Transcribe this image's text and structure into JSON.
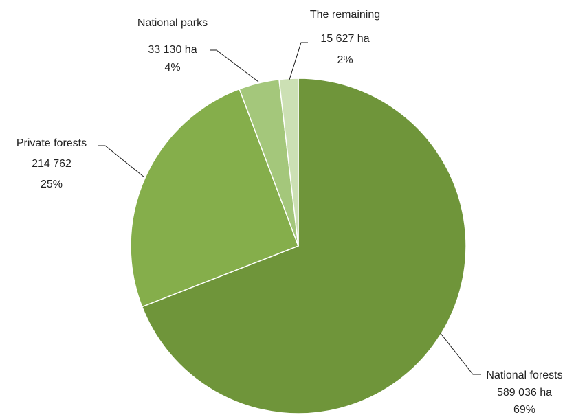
{
  "chart_data": {
    "type": "pie",
    "title": "",
    "slices": [
      {
        "name": "National forests",
        "value": 589036,
        "value_label": "589 036 ha",
        "percent_label": "69%",
        "color": "#6f953a"
      },
      {
        "name": "Private forests",
        "value": 214762,
        "value_label": "214 762",
        "percent_label": "25%",
        "color": "#85ae4b"
      },
      {
        "name": "National parks",
        "value": 33130,
        "value_label": "33 130 ha",
        "percent_label": "4%",
        "color": "#a4c77b"
      },
      {
        "name": "The remaining",
        "value": 15627,
        "value_label": "15 627 ha",
        "percent_label": "2%",
        "color": "#cce0b4"
      }
    ],
    "start_angle": "12 o'clock",
    "direction": "clockwise",
    "legend": "none"
  }
}
